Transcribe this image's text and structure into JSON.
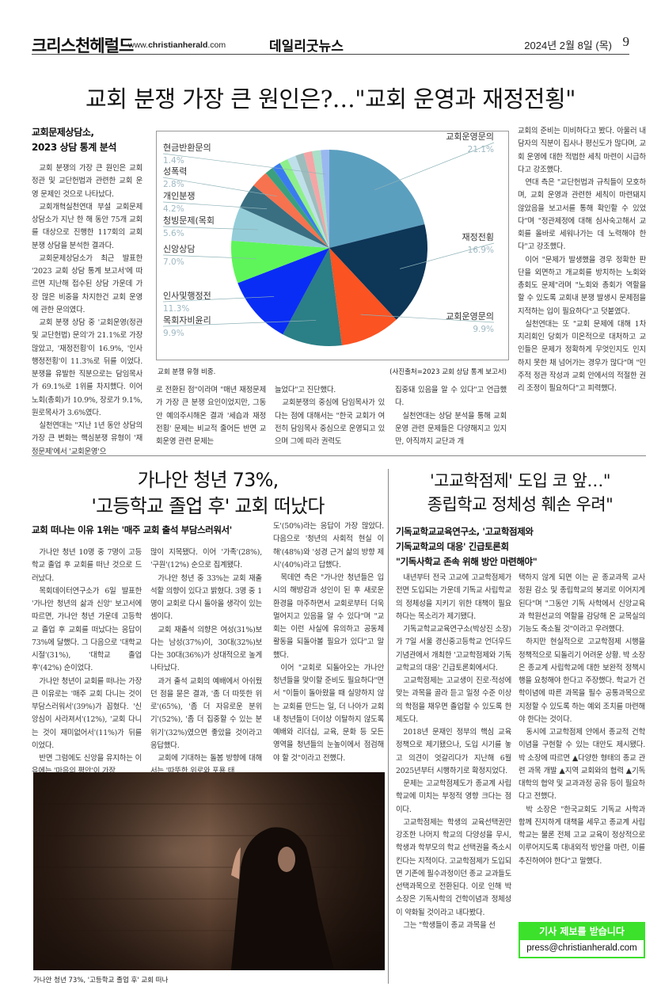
{
  "header": {
    "masthead": "크리스천헤럴드",
    "url_prefix": "www.",
    "url_bold": "christianherald",
    "url_suffix": ".com",
    "paper": "데일리굿뉴스",
    "date": "2024년 2월 8일 (목)",
    "page": "9"
  },
  "article1": {
    "headline": "교회 분쟁 가장 큰 원인은?…\"교회 운영과 재정전횡\"",
    "subhead": [
      "교회문제상담소,",
      "2023 상담 통계 분석"
    ],
    "chart_caption": "교회 분쟁 유형 비중.",
    "chart_credit": "(사진출처=2023 교회 상담 통계 보고서)",
    "columns": [
      [
        {
          "t": "교회 분쟁의 가장 큰 원인은 교회정관 및 교단헌법과 관련한 교회 운영 문제인 것으로 나타났다."
        },
        {
          "t": "교회개혁실천연대 부설 교회문제상담소가 지난 한 해 동안 75개 교회를 대상으로 진행한 117회의 교회 분쟁 상담을 분석한 결과다."
        },
        {
          "t": "교회문제상담소가 최근 발표한 '2023 교회 상담 통계 보고서'에 따르면 지난해 접수된 상담 가운데 가장 많은 비중을 차지한건 교회 운영에 관한 문의였다."
        },
        {
          "t": "교회 분쟁 상담 중 '교회운영(정관 및 교단헌법) 문의'가 21.1%로 가장 많았고, '재정전횡'이 16.9%, '인사 행정전횡'이 11.3%로 뒤를 이었다. 분쟁을 유발한 직분으로는 담임목사가 69.1%로 1위를 차지했다. 이어 노회(총회)가 10.9%, 장로가 9.1%, 원로목사가 3.6%였다."
        },
        {
          "t": "실천연대는 \"지난 1년 동안 상담의 가장 큰 변화는 핵심분쟁 유형이 '재정문제'에서 '교회운영'으"
        }
      ],
      [
        {
          "t": "로 전환된 점\"이라며 \"매년 재정문제가 가장 큰 분쟁 요인이었지만, 그동안 예의주시해온 결과 '세습과 재정전횡' 문제는 비교적 줄어든 반면 교회운영 관련 문제는",
          "cont": true
        }
      ],
      [
        {
          "t": "늘었다\"고 진단했다.",
          "cont": true
        },
        {
          "t": "교회분쟁의 중심에 담임목사가 있다는 점에 대해서는 \"한국 교회가 여전히 담임목사 중심으로 운영되고 있으며 그에 따라 권력도"
        }
      ],
      [
        {
          "t": "집중돼 있음을 알 수 있다\"고 언급했다.",
          "cont": true
        },
        {
          "t": "실천연대는 상담 분석을 통해 교회운영 관련 문제들은 다양해지고 있지만, 아직까지 교단과 개"
        }
      ],
      [
        {
          "t": "교회의 준비는 미비하다고 봤다. 아울러 내담자의 직분이 집사나 평신도가 많다며, 교회 운영에 대한 적법한 세칙 마련이 시급하다고 강조했다.",
          "cont": true
        },
        {
          "t": "연대 측은 \"교단헌법과 규칙들이 모호하며, 교회 운영과 관련한 세칙이 마련돼지 않았음을 보고서를 통해 확인할 수 있었다\"며 \"정관제정에 대해 심사숙고해서 교회를 올바로 세워나가는 데 노력해야 한다\"고 강조했다."
        },
        {
          "t": "이어 \"문제가 발생했을 경우 정확한 판단을 외면하고 개교회를 방치하는 노회와 총회도 문제\"라며 \"노회와 총회가 역할을 할 수 있도록 교회내 분쟁 발생시 문제점을 지적하는 입이 필요하다\"고 덧붙였다."
        },
        {
          "t": "실천연대는 또 \"교회 문제에 대해 1차 치리회인 당회가 미온적으로 대처하고 교인들은 문제가 정확하게 무엇인지도 인지하지 못한 채 넘어가는 경우가 많다\"며 \"민주적 정관 작성과 교회 안에서의 적절한 권리 조정이 필요하다\"고 피력했다."
        }
      ]
    ]
  },
  "chart_data": {
    "type": "pie",
    "slices": [
      {
        "label": "교회운영문의",
        "value": 21.1,
        "display": "21.1%",
        "color": "#5b9fbf"
      },
      {
        "label": "재정전횡",
        "value": 16.9,
        "display": "16.9%",
        "color": "#0d3657"
      },
      {
        "label": "교회운영문의",
        "value": 9.9,
        "display": "9.9%",
        "color": "#fb5322"
      },
      {
        "label": "목회자비윤리",
        "value": 9.9,
        "display": "9.9%",
        "color": "#2b7f86"
      },
      {
        "label": "인사및행정전",
        "value": 11.3,
        "display": "11.3%",
        "color": "#0a2df5"
      },
      {
        "label": "신앙상담",
        "value": 7.0,
        "display": "7.0%",
        "color": "#5ef55a"
      },
      {
        "label": "청빙문제(목회",
        "value": 5.6,
        "display": "5.6%",
        "color": "#94cdd8"
      },
      {
        "label": "개인분쟁",
        "value": 4.2,
        "display": "4.2%",
        "color": "#3a6f82"
      },
      {
        "label": "성폭력",
        "value": 2.8,
        "display": "2.8%",
        "color": "#f7724f"
      },
      {
        "label": "",
        "value": 1.4,
        "color": "#3aa07e"
      },
      {
        "label": "",
        "value": 1.4,
        "color": "#3a7cf0"
      },
      {
        "label": "",
        "value": 1.4,
        "color": "#8df08a"
      },
      {
        "label": "",
        "value": 1.4,
        "color": "#bfe0ea"
      },
      {
        "label": "",
        "value": 1.4,
        "color": "#9dbdbd"
      },
      {
        "label": "",
        "value": 1.4,
        "color": "#f5a5a5"
      },
      {
        "label": "",
        "value": 1.4,
        "color": "#a9e0c8"
      },
      {
        "label": "현금반환문의",
        "value": 1.4,
        "display": "1.4%",
        "color": "#9ab8f0"
      }
    ]
  },
  "article2": {
    "headline": [
      "가나안 청년 73%,",
      "'고등학교 졸업 후' 교회 떠났다"
    ],
    "subhead": "교회 떠나는 이유 1위는 '매주 교회 출석 부담스러워서'",
    "photo_caption": "가나안 청년 73%, '고등학교 졸업 후' 교회 떠나",
    "columns": [
      [
        {
          "t": "가나안 청년 10명 중 7명이 고등학교 졸업 후 교회를 떠난 것으로 드러났다."
        },
        {
          "t": "목회데이터연구소가 6일 발표한 '가나안 청년의 삶과 신앙' 보고서에 따르면, 가나안 청년 가운데 고등학교 졸업 후 교회를 떠났다는 응답이 73%에 달했다. 그 다음으로 '대학교 시절'(31%), '대학교 졸업 후'(42%) 순이었다."
        },
        {
          "t": "가나안 청년이 교회를 떠나는 가장 큰 이유로는 '매주 교회 다니는 것이 부담스러워서'(39%)가 꼽혔다. '신앙심이 사라져서'(12%), '교회 다니는 것이 재미없어서'(11%)가 뒤를 이었다."
        },
        {
          "t": "반면 그럼에도 신앙을 유지하는 이유에는 '마음의 평안'이 가장"
        }
      ],
      [
        {
          "t": "많이 지목됐다. 이어 '가족'(28%), '구원'(12%) 순으로 집계됐다.",
          "cont": true
        },
        {
          "t": "가나안 청년 중 33%는 교회 재출석할 의향이 있다고 밝혔다. 3명 중 1명이 교회로 다시 돌아올 생각이 있는 셈이다."
        },
        {
          "t": "교회 재출석 의향은 여성(31%)보다는 남성(37%)이, 30대(32%)보다는 30대(36%)가 상대적으로 높게 나타났다."
        },
        {
          "t": "과거 출석 교회의 예배에서 아쉬웠던 점을 묻은 결과, '좀 더 따뜻한 위로'(65%), '좀 더 자유로운 분위기'(52%), '좀 더 집중할 수 있는 분위기'(32%)였으면 좋았을 것이라고 응답했다."
        },
        {
          "t": "교회에 기대하는 돌봄 방향에 대해서는 '따뜻한 위로와 포용 태"
        }
      ],
      [
        {
          "t": "도'(50%)라는 응답이 가장 많았다. 다음으로 '청년의 사회적 현실 이해'(48%)와 '성경 근거 삶의 방향 제시'(40%)라고 답했다.",
          "cont": true
        },
        {
          "t": "목데연 측은 \"가나안 청년들은 입시의 해방감과 성인이 된 후 새로운 환경을 마주하면서 교회로부터 더욱 멀어지고 있음을 알 수 있다\"며 \"교회는 이런 사실에 유의하고 공동체 활동을 되돌아볼 필요가 있다\"고 말했다."
        },
        {
          "t": "이어 \"교회로 되돌아오는 가나안 청년들을 맞이할 준비도 필요하다\"면서 \"이들이 돌아왔을 때 실망하지 않는 교회를 만드는 일, 더 나아가 교회 내 청년들이 더이상 이탈하지 않도록 예배와 리더십, 교육, 문화 등 모든 영역을 청년들의 눈높이에서 점검해야 할 것\"이라고 전했다."
        }
      ]
    ]
  },
  "article3": {
    "headline": [
      "'고교학점제' 도입 코 앞…\"",
      "종립학교 정체성 훼손 우려\""
    ],
    "subhead": [
      "기독교학교교육연구소, '고교학점제와",
      "기독교학교의 대응' 긴급토론회",
      "\"기독사학교 존속 위해 방안 마련해야\""
    ],
    "columns": [
      [
        {
          "t": "내년부터 전국 고교에 고교학점제가 전면 도입되는 가운데 기독교 사립학교의 정체성을 지키기 위한 대책이 필요하다는 목소리가 제기됐다."
        },
        {
          "t": "기독교학교교육연구소(박상진 소장)가 7일 서울 경신중고등학교 언더우드기념관에서 개최한 '고교학점제와 기독교학교의 대응' 긴급토론회에서다."
        },
        {
          "t": "고교학점제는 고교생이 진로·적성에 맞는 과목을 골라 듣고 일정 수준 이상의 학점을 채우면 졸업할 수 있도록 한 제도다."
        },
        {
          "t": "2018년 문재인 정부의 핵심 교육 정책으로 제기됐으나, 도입 시기를 놓고 의견이 엇갈리다가 지난해 6월 2025년부터 시행하기로 확정지었다."
        },
        {
          "t": "문제는 고교학점제도가 종교계 사립학교에 미치는 부정적 영향 크다는 점이다."
        },
        {
          "t": "고교학점제는 학생의 교육선택권만 강조한 나머지 학교의 다양성을 무시, 학생과 학부모의 학교 선택권을 축소시킨다는 지적이다. 고교학점제가 도입되면 기존에 필수과정이던 종교 교과들도 선택과목으로 전환된다. 이로 인해 박 소장은 기독사학의 건학이념과 정체성이 약화될 것이라고 내다봤다."
        },
        {
          "t": "그는 \"학생들이 종교 과목을 선"
        }
      ],
      [
        {
          "t": "택하지 않게 되면 이는 곧 종교과목 교사 정원 감소 및 종립학교의 붕괴로 이어지게 된다\"며 \"그동안 기독 사학에서 신앙교육과 학원선교의 역할을 감당해 온 교목실의 기능도 축소될 것\"이라고 우려했다.",
          "cont": true
        },
        {
          "t": "하지만 현실적으로 고교학점제 시행을 정책적으로 되돌리기 어려운 상황. 박 소장은 종교계 사립학교에 대한 보완적 정책시행을 요청해야 한다고 주장했다. 학교가 건학이념에 따른 과목을 필수 공통과목으로 지정할 수 있도록 하는 예외 조치를 마련해야 한다는 것이다."
        },
        {
          "t": "동시에 고교학점제 안에서 종교적 건학이념을 구현할 수 있는 대안도 제시됐다. 박 소장에 따르면 ▲다양한 형태의 종교 관련 과목 개발 ▲지역 교회와의 협력 ▲기독대학의 협약 및 교과과정 공유 등이 필요하다고 전했다."
        },
        {
          "t": "박 소장은 \"한국교회도 기독교 사학과 함께 진지하게 대책을 세우고 종교계 사립학교는 물론 전체 고교 교육이 정상적으로 이루어지도록 대내외적 방안을 마련, 이를 추진하여야 한다\"고 말했다."
        }
      ]
    ]
  },
  "tip_box": {
    "title": "기사 제보를 받습니다",
    "email": "press@christianherald.com",
    "color": "#3be12b"
  }
}
